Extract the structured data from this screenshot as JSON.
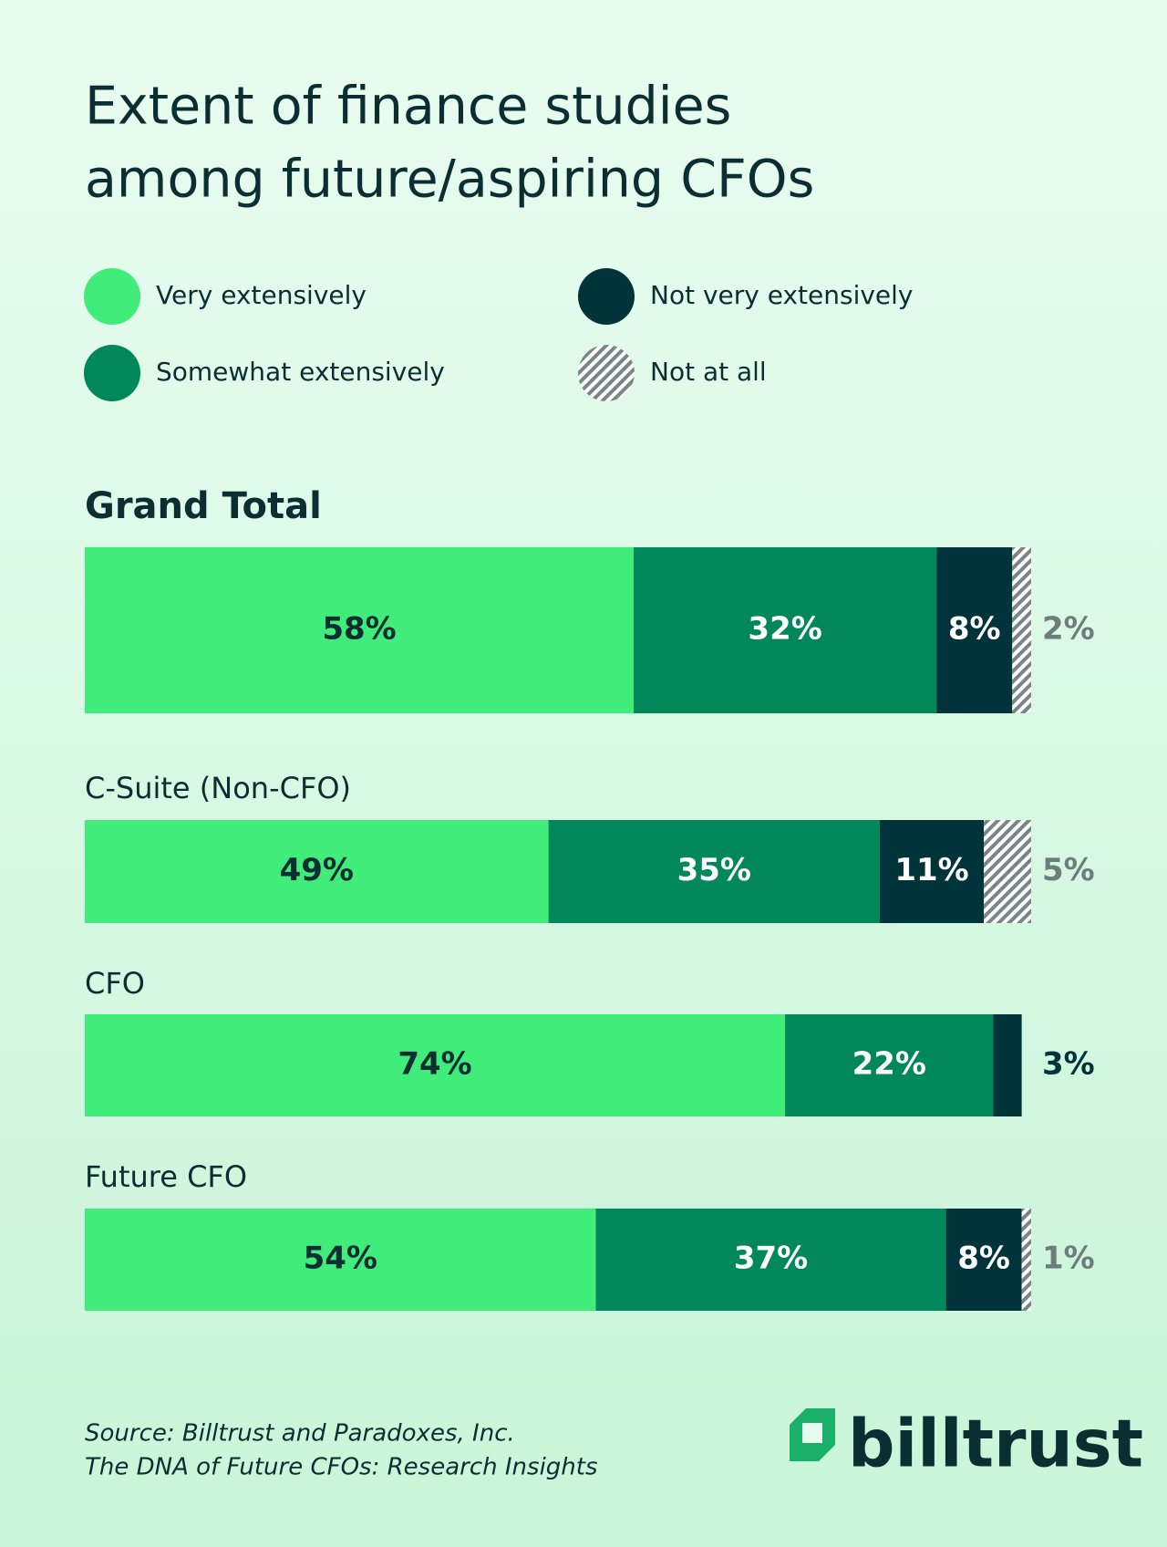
{
  "chart_data": {
    "type": "stacked-bar",
    "title": [
      "Extent of finance studies",
      "among future/aspiring CFOs"
    ],
    "categories": [
      "Grand Total",
      "C-Suite (Non-CFO)",
      "CFO",
      "Future CFO"
    ],
    "xlim": [
      0,
      100
    ],
    "series": [
      {
        "name": "Very extensively",
        "color": "#40ec7a",
        "values": [
          58,
          49,
          74,
          54
        ],
        "value_labels": [
          "58%",
          "49%",
          "74%",
          "54%"
        ]
      },
      {
        "name": "Somewhat extensively",
        "color": "#00875a",
        "values": [
          32,
          35,
          22,
          37
        ],
        "value_labels": [
          "32%",
          "35%",
          "22%",
          "37%"
        ]
      },
      {
        "name": "Not very extensively",
        "color": "#00343a",
        "values": [
          8,
          11,
          3,
          8
        ],
        "value_labels": [
          "8%",
          "11%",
          "3%",
          "8%"
        ]
      },
      {
        "name": "Not at all",
        "color": "hatch",
        "values": [
          2,
          5,
          null,
          1
        ],
        "value_labels": [
          "2%",
          "5%",
          null,
          "1%"
        ]
      }
    ],
    "source": [
      "Source: Billtrust and Paradoxes, Inc.",
      "The DNA of Future CFOs: Research Insights"
    ],
    "logo": "billtrust"
  }
}
